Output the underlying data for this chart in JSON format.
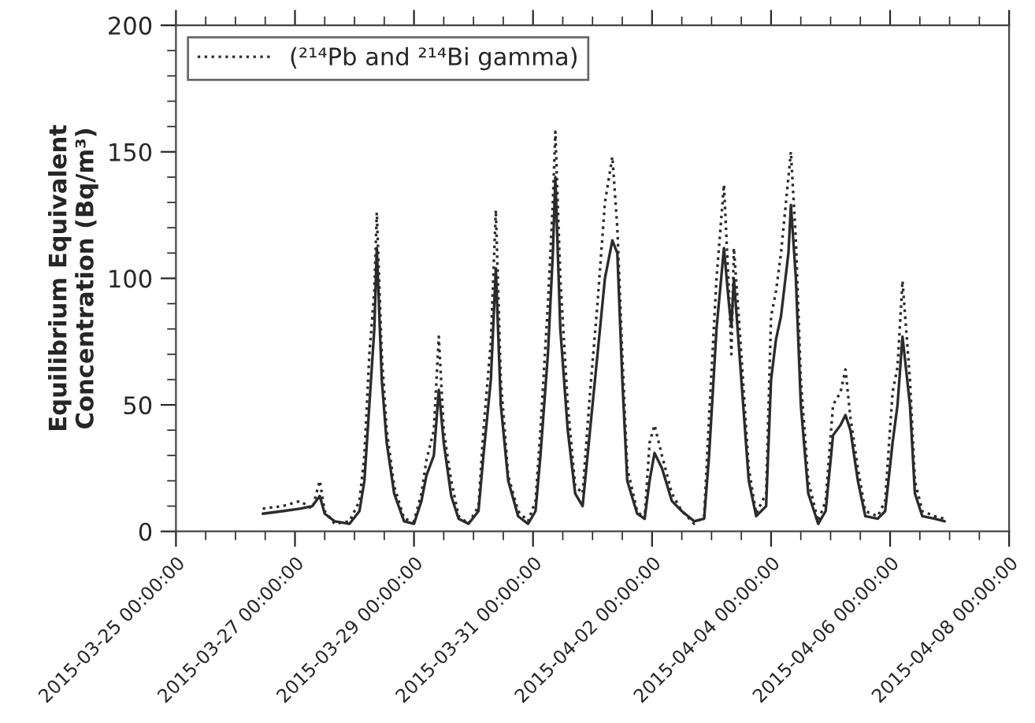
{
  "chart_data": {
    "type": "line",
    "ylabel": "Equilibrium Equivalent\nConcentration (Bq/m³)",
    "x": [
      "2015-03-26T11:00",
      "2015-03-26T19:00",
      "2015-03-27T02:00",
      "2015-03-27T07:00",
      "2015-03-27T10:00",
      "2015-03-27T12:00",
      "2015-03-27T16:00",
      "2015-03-27T22:00",
      "2015-03-28T02:00",
      "2015-03-28T04:00",
      "2015-03-28T06:00",
      "2015-03-28T08:00",
      "2015-03-28T09:00",
      "2015-03-28T11:00",
      "2015-03-28T13:00",
      "2015-03-28T16:00",
      "2015-03-28T20:00",
      "2015-03-29T00:00",
      "2015-03-29T03:00",
      "2015-03-29T05:00",
      "2015-03-29T08:00",
      "2015-03-29T10:00",
      "2015-03-29T12:00",
      "2015-03-29T15:00",
      "2015-03-29T18:00",
      "2015-03-29T22:00",
      "2015-03-30T02:00",
      "2015-03-30T04:00",
      "2015-03-30T07:00",
      "2015-03-30T09:00",
      "2015-03-30T11:00",
      "2015-03-30T14:00",
      "2015-03-30T18:00",
      "2015-03-30T22:00",
      "2015-03-31T01:00",
      "2015-03-31T03:00",
      "2015-03-31T06:00",
      "2015-03-31T08:00",
      "2015-03-31T09:00",
      "2015-03-31T11:00",
      "2015-03-31T14:00",
      "2015-03-31T17:00",
      "2015-03-31T20:00",
      "2015-03-31T23:00",
      "2015-04-01T02:00",
      "2015-04-01T05:00",
      "2015-04-01T08:00",
      "2015-04-01T10:00",
      "2015-04-01T12:00",
      "2015-04-01T14:00",
      "2015-04-01T18:00",
      "2015-04-01T21:00",
      "2015-04-01T23:00",
      "2015-04-02T01:00",
      "2015-04-02T04:00",
      "2015-04-02T08:00",
      "2015-04-02T12:00",
      "2015-04-02T17:00",
      "2015-04-02T21:00",
      "2015-04-02T23:00",
      "2015-04-03T02:00",
      "2015-04-03T05:00",
      "2015-04-03T07:00",
      "2015-04-03T08:00",
      "2015-04-03T09:00",
      "2015-04-03T12:00",
      "2015-04-03T15:00",
      "2015-04-03T18:00",
      "2015-04-03T22:00",
      "2015-04-04T00:00",
      "2015-04-04T02:00",
      "2015-04-04T04:00",
      "2015-04-04T07:00",
      "2015-04-04T08:00",
      "2015-04-04T10:00",
      "2015-04-04T12:00",
      "2015-04-04T15:00",
      "2015-04-04T19:00",
      "2015-04-04T22:00",
      "2015-04-05T01:00",
      "2015-04-05T04:00",
      "2015-04-05T06:00",
      "2015-04-05T08:00",
      "2015-04-05T11:00",
      "2015-04-05T14:00",
      "2015-04-05T19:00",
      "2015-04-05T22:00",
      "2015-04-06T01:00",
      "2015-04-06T03:00",
      "2015-04-06T05:00",
      "2015-04-06T08:00",
      "2015-04-06T10:00",
      "2015-04-06T13:00",
      "2015-04-06T18:00",
      "2015-04-06T22:00"
    ],
    "series": [
      {
        "color": "#2b2b2b",
        "line_style": "solid",
        "values": [
          7,
          8,
          9,
          10,
          14,
          7,
          4,
          3,
          8,
          20,
          50,
          80,
          112,
          60,
          35,
          15,
          4,
          3,
          12,
          22,
          30,
          56,
          35,
          14,
          5,
          3,
          8,
          30,
          60,
          104,
          50,
          20,
          6,
          3,
          8,
          30,
          70,
          110,
          140,
          80,
          40,
          15,
          10,
          40,
          70,
          100,
          115,
          110,
          60,
          20,
          7,
          5,
          20,
          31,
          25,
          12,
          8,
          4,
          5,
          30,
          80,
          112,
          90,
          81,
          100,
          60,
          20,
          6,
          10,
          60,
          76,
          85,
          110,
          129,
          100,
          50,
          15,
          3,
          8,
          38,
          42,
          46,
          40,
          20,
          6,
          5,
          8,
          35,
          50,
          77,
          50,
          15,
          6,
          5,
          4
        ]
      },
      {
        "name": "(²¹⁴Pb and ²¹⁴Bi gamma)",
        "color": "#2b2b2b",
        "line_style": "dotted",
        "values": [
          9,
          10,
          12,
          9,
          20,
          8,
          3,
          4,
          12,
          30,
          70,
          95,
          126,
          70,
          40,
          18,
          5,
          4,
          15,
          28,
          40,
          77,
          40,
          20,
          6,
          3,
          10,
          40,
          75,
          127,
          60,
          22,
          8,
          4,
          12,
          40,
          90,
          130,
          158,
          100,
          50,
          18,
          15,
          55,
          90,
          130,
          148,
          120,
          70,
          25,
          8,
          5,
          35,
          42,
          30,
          15,
          8,
          3,
          6,
          45,
          100,
          137,
          95,
          70,
          112,
          70,
          25,
          7,
          15,
          85,
          95,
          110,
          140,
          150,
          115,
          60,
          20,
          4,
          12,
          50,
          55,
          64,
          45,
          25,
          8,
          6,
          12,
          55,
          65,
          99,
          60,
          20,
          8,
          6,
          5
        ]
      }
    ],
    "xlim": [
      "2015-03-25",
      "2015-04-08"
    ],
    "xticks": [
      {
        "value": "2015-03-25",
        "label": "2015-03-25 00:00:00"
      },
      {
        "value": "2015-03-25T12:00",
        "label": null
      },
      {
        "value": "2015-03-26",
        "label": null
      },
      {
        "value": "2015-03-26T12:00",
        "label": null
      },
      {
        "value": "2015-03-27",
        "label": "2015-03-27 00:00:00"
      },
      {
        "value": "2015-03-27T12:00",
        "label": null
      },
      {
        "value": "2015-03-28",
        "label": null
      },
      {
        "value": "2015-03-28T12:00",
        "label": null
      },
      {
        "value": "2015-03-29",
        "label": "2015-03-29 00:00:00"
      },
      {
        "value": "2015-03-29T12:00",
        "label": null
      },
      {
        "value": "2015-03-30",
        "label": null
      },
      {
        "value": "2015-03-30T12:00",
        "label": null
      },
      {
        "value": "2015-03-31",
        "label": "2015-03-31 00:00:00"
      },
      {
        "value": "2015-03-31T12:00",
        "label": null
      },
      {
        "value": "2015-04-01",
        "label": null
      },
      {
        "value": "2015-04-01T12:00",
        "label": null
      },
      {
        "value": "2015-04-02",
        "label": "2015-04-02 00:00:00"
      },
      {
        "value": "2015-04-02T12:00",
        "label": null
      },
      {
        "value": "2015-04-03",
        "label": null
      },
      {
        "value": "2015-04-03T12:00",
        "label": null
      },
      {
        "value": "2015-04-04",
        "label": "2015-04-04 00:00:00"
      },
      {
        "value": "2015-04-04T12:00",
        "label": null
      },
      {
        "value": "2015-04-05",
        "label": null
      },
      {
        "value": "2015-04-05T12:00",
        "label": null
      },
      {
        "value": "2015-04-06",
        "label": "2015-04-06 00:00:00"
      },
      {
        "value": "2015-04-06T12:00",
        "label": null
      },
      {
        "value": "2015-04-07",
        "label": null
      },
      {
        "value": "2015-04-07T12:00",
        "label": null
      },
      {
        "value": "2015-04-08",
        "label": "2015-04-08 00:00:00"
      }
    ],
    "ylim": [
      0,
      200
    ],
    "yticks": [
      0,
      {
        "value": 10,
        "label": null
      },
      {
        "value": 20,
        "label": null
      },
      {
        "value": 30,
        "label": null
      },
      {
        "value": 40,
        "label": null
      },
      50,
      {
        "value": 60,
        "label": null
      },
      {
        "value": 70,
        "label": null
      },
      {
        "value": 80,
        "label": null
      },
      {
        "value": 90,
        "label": null
      },
      100,
      {
        "value": 110,
        "label": null
      },
      {
        "value": 120,
        "label": null
      },
      {
        "value": 130,
        "label": null
      },
      {
        "value": 140,
        "label": null
      },
      150,
      {
        "value": 160,
        "label": null
      },
      {
        "value": 170,
        "label": null
      },
      {
        "value": 180,
        "label": null
      },
      {
        "value": 190,
        "label": null
      },
      200
    ],
    "grid": false,
    "legend": "top left"
  }
}
